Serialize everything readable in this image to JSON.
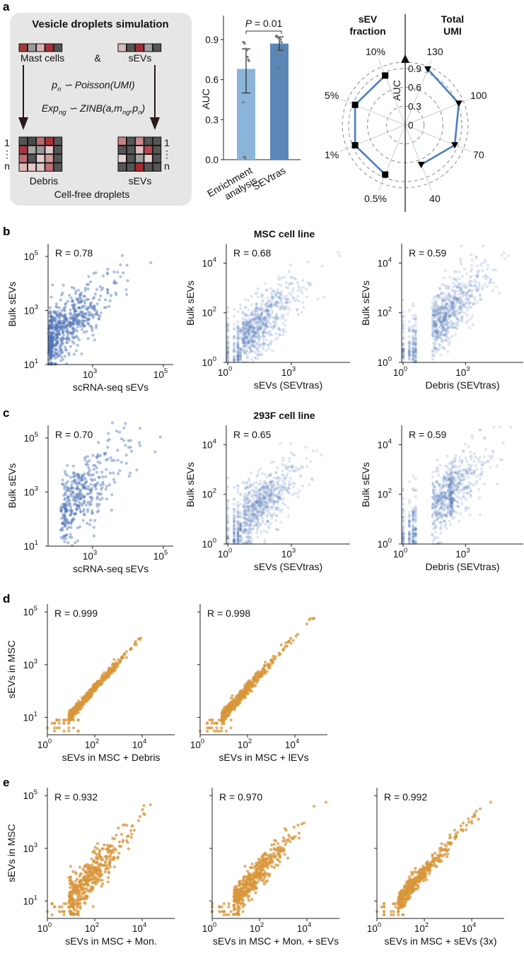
{
  "panel_labels": {
    "a": "a",
    "b": "b",
    "c": "c",
    "d": "d",
    "e": "e"
  },
  "schematic": {
    "title": "Vesicle droplets simulation",
    "top_left_label": "Mast cells",
    "amp": "&",
    "top_right_label": "sEVs",
    "eq1": {
      "p": "p",
      "p_sub": "n",
      "rest": " ∽ Poisson(UMI)"
    },
    "eq2": {
      "exp": "Exp",
      "exp_sub": "ng",
      "mid": " ∽ ZINB(a,m",
      "m_sub": "ng",
      "comma_p": ",p",
      "p_sub": "n",
      "close": ")"
    },
    "index_first": "1",
    "index_dots": "⋮",
    "index_last": "n",
    "bottom_left_label": "Debris",
    "bottom_right_label": "sEVs",
    "footer": "Cell-free droplets",
    "colors": {
      "top_left_strip": [
        "#a33a3a",
        "#9a9a9a",
        "#d8b5b5",
        "#a8323a",
        "#555555"
      ],
      "top_right_strip": [
        "#dbb9b9",
        "#555555",
        "#a32f35",
        "#9f9f9f",
        "#555555"
      ],
      "debris_grid": [
        [
          "#555555",
          "#4a4a4a",
          "#b86a6a",
          "#a83238",
          "#555555"
        ],
        [
          "#a83540",
          "#a5a5a5",
          "#999999",
          "#e0c8c8",
          "#555555"
        ],
        [
          "#c06a70",
          "#555555",
          "#e5cccc",
          "#d09a9a",
          "#555555"
        ],
        [
          "#e0b8b8",
          "#e5c5c5",
          "#e0c8c8",
          "#c07075",
          "#555555"
        ]
      ],
      "sevs_grid": [
        [
          "#c88080",
          "#555555",
          "#cc8a8a",
          "#555555",
          "#555555"
        ],
        [
          "#555555",
          "#555555",
          "#e0c0c0",
          "#b84850",
          "#555555"
        ],
        [
          "#e5d0d0",
          "#555555",
          "#a0a0a0",
          "#e8d0d0",
          "#555555"
        ],
        [
          "#555555",
          "#555555",
          "#a82830",
          "#555555",
          "#555555"
        ]
      ]
    }
  },
  "section_titles": {
    "b": "MSC cell line",
    "c": "293F cell line"
  },
  "chart_data": [
    {
      "type": "bar",
      "ylabel": "AUC",
      "ylim": [
        0,
        0.9
      ],
      "yticks": [
        "0.0",
        "0.3",
        "0.6",
        "0.9"
      ],
      "categories": [
        "Enrichment\nanalysis",
        "SEVtras"
      ],
      "category_lines": [
        [
          "Enrichment",
          "analysis"
        ],
        [
          "SEVtras"
        ]
      ],
      "values": [
        0.68,
        0.87
      ],
      "error_low": [
        0.5,
        0.82
      ],
      "error_high": [
        0.83,
        0.92
      ],
      "colors": [
        "#8ab4d8",
        "#5b87b8"
      ],
      "points": [
        [
          0.88,
          0.88,
          0.87,
          0.83,
          0.83,
          0.82,
          0.77,
          0.75,
          0.74,
          0.43,
          0.02,
          0.02,
          0.01
        ],
        [
          0.93,
          0.92,
          0.92,
          0.91,
          0.91,
          0.9,
          0.9,
          0.88,
          0.83,
          0.82,
          0.79,
          0.69,
          0.68,
          0.64
        ]
      ],
      "annotation": {
        "p_italic": "P",
        "p_rest": " = 0.01"
      }
    },
    {
      "type": "radar",
      "axis_label": "AUC",
      "rticks": [
        "0",
        "0.3",
        "0.6",
        "0.9"
      ],
      "left_header": [
        "sEV",
        "fraction"
      ],
      "right_header": [
        "Total",
        "UMI"
      ],
      "line_color": "#4a7fc0",
      "left_series": {
        "categories": [
          "10%",
          "5%",
          "1%",
          "0.5%"
        ],
        "values": [
          0.85,
          0.86,
          0.86,
          0.85
        ],
        "marker": "square"
      },
      "right_series": {
        "categories": [
          "130",
          "100",
          "70",
          "40"
        ],
        "values": [
          0.96,
          0.92,
          0.85,
          0.68
        ],
        "marker": "triangle-down"
      }
    },
    {
      "type": "scatter",
      "panel": "b",
      "style": "sc",
      "r_label": "R = 0.78",
      "R": 0.78,
      "xlabel": "scRNA-seq sEVs",
      "ylabel": "Bulk sEVs",
      "xticks": [
        [
          "10",
          "3",
          3
        ],
        [
          "10",
          "5",
          5
        ]
      ],
      "yticks": [
        [
          "10",
          "1",
          1
        ],
        [
          "10",
          "3",
          3
        ],
        [
          "10",
          "5",
          5
        ]
      ],
      "xlim_log10": [
        1.74,
        5.28
      ],
      "ylim_log10": [
        1,
        5.47
      ],
      "color": "#4e73b8"
    },
    {
      "type": "scatter",
      "panel": "b",
      "style": "sev",
      "r_label": "R = 0.68",
      "R": 0.68,
      "xlabel": "sEVs (SEVtras)",
      "ylabel": "Bulk sEVs",
      "xticks": [
        [
          "10",
          "0",
          0
        ],
        [
          "10",
          "3",
          3
        ]
      ],
      "yticks": [
        [
          "10",
          "0",
          0
        ],
        [
          "10",
          "2",
          2
        ],
        [
          "10",
          "4",
          4
        ]
      ],
      "xlim_log10": [
        -0.07,
        5.77
      ],
      "ylim_log10": [
        0,
        4.78
      ],
      "color": "#4e73b8"
    },
    {
      "type": "scatter",
      "panel": "b",
      "style": "deb",
      "r_label": "R = 0.59",
      "R": 0.59,
      "xlabel": "Debris (SEVtras)",
      "ylabel": "Bulk sEVs",
      "xticks": [
        [
          "10",
          "0",
          0
        ],
        [
          "10",
          "3",
          3
        ]
      ],
      "yticks": [
        [
          "10",
          "0",
          0
        ],
        [
          "10",
          "2",
          2
        ],
        [
          "10",
          "4",
          4
        ]
      ],
      "xlim_log10": [
        -0.07,
        5.77
      ],
      "ylim_log10": [
        0,
        4.78
      ],
      "color": "#4e73b8"
    },
    {
      "type": "scatter",
      "panel": "c",
      "style": "sc2",
      "r_label": "R = 0.70",
      "R": 0.7,
      "xlabel": "scRNA-seq sEVs",
      "ylabel": "Bulk sEVs",
      "xticks": [
        [
          "10",
          "3",
          3
        ],
        [
          "10",
          "5",
          5
        ]
      ],
      "yticks": [
        [
          "10",
          "1",
          1
        ],
        [
          "10",
          "3",
          3
        ],
        [
          "10",
          "5",
          5
        ]
      ],
      "xlim_log10": [
        1.74,
        5.28
      ],
      "ylim_log10": [
        1,
        5.47
      ],
      "color": "#4e73b8"
    },
    {
      "type": "scatter",
      "panel": "c",
      "style": "sev",
      "r_label": "R = 0.65",
      "R": 0.65,
      "xlabel": "sEVs (SEVtras)",
      "ylabel": "Bulk sEVs",
      "xticks": [
        [
          "10",
          "0",
          0
        ],
        [
          "10",
          "3",
          3
        ]
      ],
      "yticks": [
        [
          "10",
          "0",
          0
        ],
        [
          "10",
          "2",
          2
        ],
        [
          "10",
          "4",
          4
        ]
      ],
      "xlim_log10": [
        -0.07,
        5.77
      ],
      "ylim_log10": [
        0,
        4.78
      ],
      "color": "#4e73b8"
    },
    {
      "type": "scatter",
      "panel": "c",
      "style": "deb2",
      "r_label": "R = 0.59",
      "R": 0.59,
      "xlabel": "Debris (SEVtras)",
      "ylabel": "Bulk sEVs",
      "xticks": [
        [
          "10",
          "0",
          0
        ],
        [
          "10",
          "3",
          3
        ]
      ],
      "yticks": [
        [
          "10",
          "0",
          0
        ],
        [
          "10",
          "2",
          2
        ],
        [
          "10",
          "4",
          4
        ]
      ],
      "xlim_log10": [
        -0.07,
        5.77
      ],
      "ylim_log10": [
        0,
        4.78
      ],
      "color": "#4e73b8"
    },
    {
      "type": "scatter",
      "panel": "d",
      "style": "mix",
      "r_label": "R = 0.999",
      "R": 0.999,
      "xlabel": "sEVs in MSC + Debris",
      "ylabel": "sEVs in MSC",
      "xticks": [
        [
          "10",
          "0",
          0
        ],
        [
          "10",
          "2",
          2
        ],
        [
          "10",
          "4",
          4
        ]
      ],
      "yticks": [
        [
          "10",
          "1",
          1
        ],
        [
          "10",
          "3",
          3
        ],
        [
          "10",
          "5",
          5
        ]
      ],
      "xlim_log10": [
        0,
        5.37
      ],
      "ylim_log10": [
        0.34,
        5.3
      ],
      "color": "#d8953a"
    },
    {
      "type": "scatter",
      "panel": "d",
      "style": "mix",
      "r_label": "R = 0.998",
      "R": 0.998,
      "xlabel": "sEVs in MSC + lEVs",
      "ylabel": "",
      "xticks": [
        [
          "10",
          "0",
          0
        ],
        [
          "10",
          "2",
          2
        ],
        [
          "10",
          "4",
          4
        ]
      ],
      "yticks": [
        [
          "",
          "",
          1
        ],
        [
          "",
          "",
          3
        ],
        [
          "",
          "",
          5
        ]
      ],
      "xlim_log10": [
        0,
        5.37
      ],
      "ylim_log10": [
        0.34,
        5.3
      ],
      "color": "#d8953a"
    },
    {
      "type": "scatter",
      "panel": "e",
      "style": "mix",
      "r_label": "R = 0.932",
      "R": 0.932,
      "xlabel": "sEVs in MSC + Mon.",
      "ylabel": "sEVs in MSC",
      "xticks": [
        [
          "10",
          "0",
          0
        ],
        [
          "10",
          "2",
          2
        ],
        [
          "10",
          "4",
          4
        ]
      ],
      "yticks": [
        [
          "10",
          "1",
          1
        ],
        [
          "10",
          "3",
          3
        ],
        [
          "10",
          "5",
          5
        ]
      ],
      "xlim_log10": [
        0,
        5.37
      ],
      "ylim_log10": [
        0.34,
        5.3
      ],
      "color": "#d8953a"
    },
    {
      "type": "scatter",
      "panel": "e",
      "style": "mix",
      "r_label": "R = 0.970",
      "R": 0.97,
      "xlabel": "sEVs in MSC + Mon. + sEVs",
      "ylabel": "",
      "xticks": [
        [
          "10",
          "0",
          0
        ],
        [
          "10",
          "2",
          2
        ],
        [
          "10",
          "4",
          4
        ]
      ],
      "yticks": [
        [
          "",
          "",
          1
        ],
        [
          "",
          "",
          3
        ],
        [
          "",
          "",
          5
        ]
      ],
      "xlim_log10": [
        0,
        5.37
      ],
      "ylim_log10": [
        0.34,
        5.3
      ],
      "color": "#d8953a"
    },
    {
      "type": "scatter",
      "panel": "e",
      "style": "mix",
      "r_label": "R = 0.992",
      "R": 0.992,
      "xlabel": "sEVs in MSC + sEVs (3x)",
      "ylabel": "",
      "xticks": [
        [
          "10",
          "0",
          0
        ],
        [
          "10",
          "2",
          2
        ],
        [
          "10",
          "4",
          4
        ]
      ],
      "yticks": [
        [
          "",
          "",
          1
        ],
        [
          "",
          "",
          3
        ],
        [
          "",
          "",
          5
        ]
      ],
      "xlim_log10": [
        0,
        5.37
      ],
      "ylim_log10": [
        0.34,
        5.3
      ],
      "color": "#d8953a"
    }
  ]
}
